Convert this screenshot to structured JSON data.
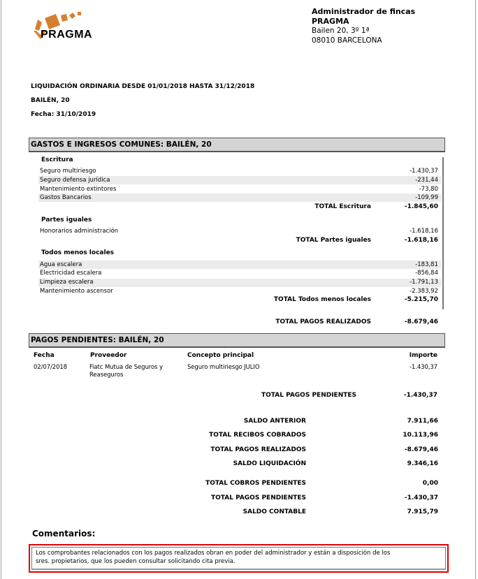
{
  "logo": {
    "text": "PRAGMA",
    "color": "#d67f30"
  },
  "admin": {
    "title": "Administrador de fincas",
    "name": "PRAGMA",
    "address": "Bailen 20, 3º 1ª",
    "city": "08010 BARCELONA"
  },
  "doc": {
    "title": "LIQUIDACIÓN ORDINARIA DESDE 01/01/2018 HASTA 31/12/2018",
    "building": "BAILÉN, 20",
    "date": "Fecha:  31/10/2019"
  },
  "gastos": {
    "header": "GASTOS E INGRESOS COMUNES: BAILÉN, 20",
    "groups": [
      {
        "name": "Escritura",
        "items": [
          {
            "label": "Seguro multiriesgo",
            "value": "-1.430,37"
          },
          {
            "label": "Seguro defensa jurídica",
            "value": "-231,44"
          },
          {
            "label": "Mantenimiento extintores",
            "value": "-73,80"
          },
          {
            "label": "Gastos Bancarios",
            "value": "-109,99"
          }
        ],
        "total_label": "TOTAL Escritura",
        "total": "-1.845,60"
      },
      {
        "name": "Partes iguales",
        "items": [
          {
            "label": "Honorarios administración",
            "value": "-1.618,16"
          }
        ],
        "total_label": "TOTAL Partes iguales",
        "total": "-1.618,16"
      },
      {
        "name": "Todos menos locales",
        "items": [
          {
            "label": "Agua escalera",
            "value": "-183,81"
          },
          {
            "label": "Electricidad escalera",
            "value": "-856,84"
          },
          {
            "label": "Limpieza escalera",
            "value": "-1.791,13"
          },
          {
            "label": "Mantenimiento ascensor",
            "value": "-2.383,92"
          }
        ],
        "total_label": "TOTAL Todos menos locales",
        "total": "-5.215,70"
      }
    ],
    "total_label": "TOTAL PAGOS REALIZADOS",
    "total": "-8.679,46"
  },
  "pendientes": {
    "header": "PAGOS PENDIENTES: BAILÉN, 20",
    "columns": [
      "Fecha",
      "Proveedor",
      "Concepto principal",
      "Importe"
    ],
    "rows": [
      {
        "fecha": "02/07/2018",
        "proveedor": "Fiatc Mutua de Seguros y",
        "proveedor2": "Reaseguros",
        "concepto": "Seguro multiriesgo JULIO",
        "importe": "-1.430,37"
      }
    ],
    "total_label": "TOTAL PAGOS PENDIENTES",
    "total": "-1.430,37"
  },
  "summary": [
    {
      "label": "SALDO ANTERIOR",
      "value": "7.911,66"
    },
    {
      "label": "TOTAL RECIBOS COBRADOS",
      "value": "10.113,96"
    },
    {
      "label": "TOTAL PAGOS REALIZADOS",
      "value": "-8.679,46"
    },
    {
      "label": "SALDO LIQUIDACIÓN",
      "value": "9.346,16"
    },
    {
      "label": "TOTAL COBROS PENDIENTES",
      "value": "0,00"
    },
    {
      "label": "TOTAL PAGOS PENDIENTES",
      "value": "-1.430,37"
    },
    {
      "label": "SALDO CONTABLE",
      "value": "7.915,79"
    }
  ],
  "comments": {
    "title": "Comentarios:",
    "line1": "Los comprobantes relacionados con los pagos realizados obran en poder del administrador y están a disposición de los",
    "line2": "sres. propietarios, que los pueden consultar solicitando cita previa.",
    "border_color": "#e00000"
  }
}
